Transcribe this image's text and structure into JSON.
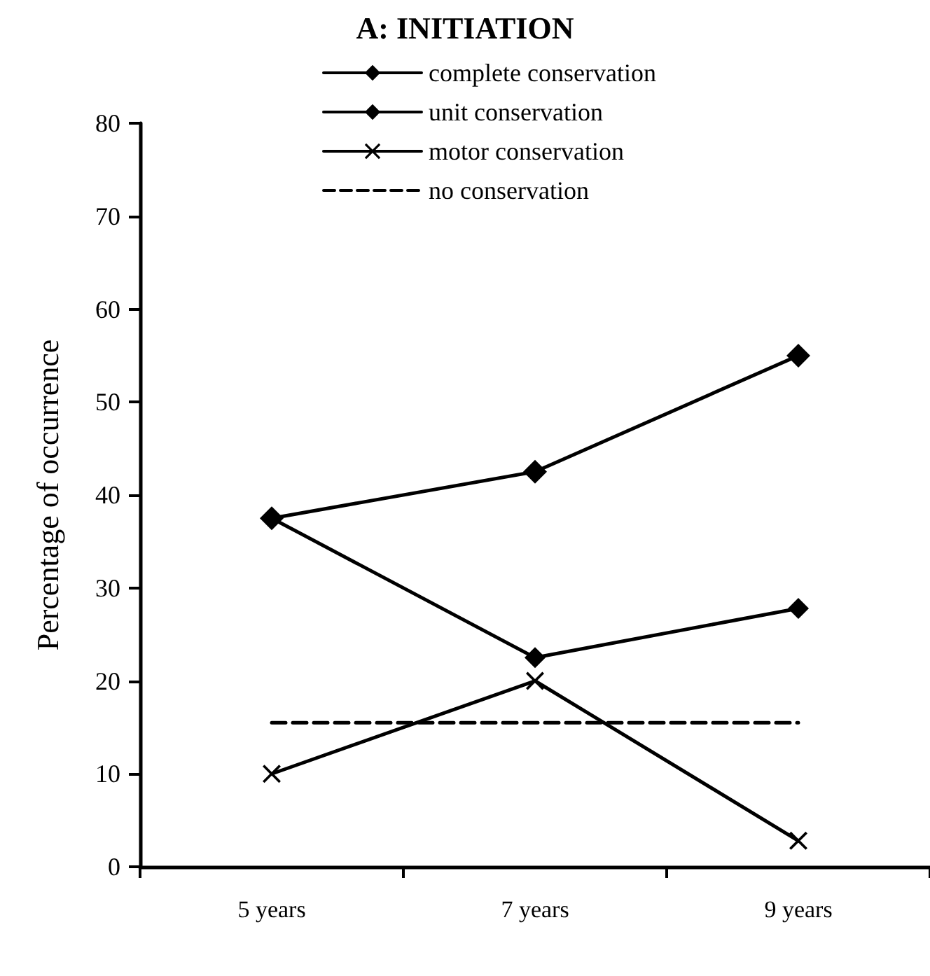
{
  "chart_data": {
    "type": "line",
    "title": "A: INITIATION",
    "ylabel": "Percentage of occurrence",
    "categories": [
      "5 years",
      "7 years",
      "9 years"
    ],
    "series": [
      {
        "name": "complete conservation",
        "color": "#000000",
        "marker": "diamond",
        "line_style": "solid",
        "values": [
          37.5,
          42.5,
          55
        ]
      },
      {
        "name": "unit conservation",
        "color": "#000000",
        "marker": "diamond",
        "line_style": "solid",
        "values": [
          37.5,
          22.5,
          27.8
        ]
      },
      {
        "name": "motor conservation",
        "color": "#000000",
        "marker": "cross",
        "line_style": "solid",
        "values": [
          10,
          20,
          2.8
        ]
      },
      {
        "name": "no conservation",
        "color": "#000000",
        "marker": "none",
        "line_style": "dashed",
        "values": [
          15.5,
          15.5,
          15.5
        ]
      }
    ],
    "ylim": [
      0,
      80
    ],
    "yticks": [
      0,
      10,
      20,
      30,
      40,
      50,
      60,
      70,
      80
    ],
    "grid": false,
    "legend": "top"
  }
}
